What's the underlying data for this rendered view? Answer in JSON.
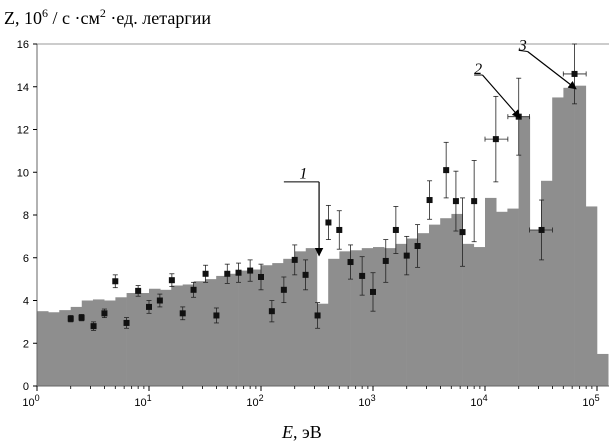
{
  "chart_data": {
    "type": "bar",
    "ylabel_parts": {
      "prefix": "Z, 10",
      "exp1": "6",
      "mid": " / с ·см",
      "exp2": "2",
      "suffix": " ·ед. летаргии"
    },
    "xlabel_parts": {
      "var": "E",
      "unit": ", эВ"
    },
    "x_scale": "log",
    "xlim": [
      1,
      100000
    ],
    "ylim": [
      0,
      16
    ],
    "x_ticks": [
      {
        "value": 1,
        "base": "10",
        "exp": "0"
      },
      {
        "value": 10,
        "base": "10",
        "exp": "1"
      },
      {
        "value": 100,
        "base": "10",
        "exp": "2"
      },
      {
        "value": 1000,
        "base": "10",
        "exp": "3"
      },
      {
        "value": 10000,
        "base": "10",
        "exp": "4"
      },
      {
        "value": 100000,
        "base": "10",
        "exp": "5"
      }
    ],
    "y_ticks": [
      0,
      2,
      4,
      6,
      8,
      10,
      12,
      14,
      16
    ],
    "grid": false,
    "colors": {
      "histogram": "#8e8e8e",
      "points": "#111111",
      "frame": "#666666"
    },
    "histogram": {
      "edges": [
        1,
        1.26,
        1.58,
        2,
        2.51,
        3.16,
        3.98,
        5.01,
        6.31,
        7.94,
        10,
        12.6,
        15.8,
        20,
        25.1,
        31.6,
        39.8,
        50.1,
        63.1,
        79.4,
        100,
        126,
        158,
        200,
        251,
        316,
        398,
        501,
        631,
        794,
        1000,
        1259,
        1585,
        1995,
        2512,
        3162,
        3981,
        5012,
        6310,
        7943,
        10000,
        12589,
        15849,
        19953,
        25119,
        31623,
        39811,
        50119,
        63096,
        79433,
        100000,
        125893
      ],
      "values": [
        3.5,
        3.45,
        3.55,
        3.7,
        4.0,
        4.05,
        4.0,
        4.15,
        4.35,
        4.35,
        4.55,
        4.5,
        4.7,
        4.75,
        4.9,
        5.0,
        5.15,
        5.25,
        5.4,
        5.45,
        5.65,
        5.75,
        5.95,
        6.3,
        6.45,
        3.85,
        5.95,
        6.3,
        6.35,
        6.45,
        6.5,
        6.45,
        6.65,
        6.9,
        7.15,
        7.55,
        7.85,
        8.05,
        6.65,
        6.5,
        8.8,
        8.15,
        8.3,
        12.6,
        7.3,
        9.6,
        13.5,
        13.95,
        14.05,
        8.4,
        1.5
      ]
    },
    "points": [
      {
        "x": 2.0,
        "y": 3.15,
        "yerr": 0.15
      },
      {
        "x": 2.5,
        "y": 3.2,
        "yerr": 0.15
      },
      {
        "x": 3.2,
        "y": 2.8,
        "yerr": 0.2
      },
      {
        "x": 4.0,
        "y": 3.4,
        "yerr": 0.2
      },
      {
        "x": 5.0,
        "y": 4.9,
        "yerr": 0.3
      },
      {
        "x": 6.3,
        "y": 2.95,
        "yerr": 0.25
      },
      {
        "x": 8.0,
        "y": 4.45,
        "yerr": 0.25
      },
      {
        "x": 10.0,
        "y": 3.7,
        "yerr": 0.3
      },
      {
        "x": 12.5,
        "y": 4.0,
        "yerr": 0.3
      },
      {
        "x": 16.0,
        "y": 4.95,
        "yerr": 0.3
      },
      {
        "x": 20.0,
        "y": 3.4,
        "yerr": 0.3
      },
      {
        "x": 25.0,
        "y": 4.5,
        "yerr": 0.35
      },
      {
        "x": 32.0,
        "y": 5.25,
        "yerr": 0.4
      },
      {
        "x": 40.0,
        "y": 3.3,
        "yerr": 0.35
      },
      {
        "x": 50.0,
        "y": 5.25,
        "yerr": 0.45
      },
      {
        "x": 63.0,
        "y": 5.3,
        "yerr": 0.45
      },
      {
        "x": 80.0,
        "y": 5.4,
        "yerr": 0.5
      },
      {
        "x": 100.0,
        "y": 5.1,
        "yerr": 0.6
      },
      {
        "x": 125.0,
        "y": 3.5,
        "yerr": 0.5
      },
      {
        "x": 160.0,
        "y": 4.5,
        "yerr": 0.6
      },
      {
        "x": 200.0,
        "y": 5.9,
        "yerr": 0.7
      },
      {
        "x": 250.0,
        "y": 5.2,
        "yerr": 0.7
      },
      {
        "x": 320.0,
        "y": 3.3,
        "yerr": 0.6
      },
      {
        "x": 400.0,
        "y": 7.65,
        "yerr": 0.8
      },
      {
        "x": 500.0,
        "y": 7.3,
        "yerr": 0.9
      },
      {
        "x": 630.0,
        "y": 5.8,
        "yerr": 0.8
      },
      {
        "x": 800.0,
        "y": 5.15,
        "yerr": 0.9
      },
      {
        "x": 1000.0,
        "y": 4.4,
        "yerr": 0.9
      },
      {
        "x": 1300.0,
        "y": 5.85,
        "yerr": 1.0
      },
      {
        "x": 1600.0,
        "y": 7.3,
        "yerr": 1.1
      },
      {
        "x": 2000.0,
        "y": 6.1,
        "yerr": 0.9
      },
      {
        "x": 2500.0,
        "y": 6.55,
        "yerr": 1.0
      },
      {
        "x": 3200.0,
        "y": 8.7,
        "yerr": 0.9
      },
      {
        "x": 4500.0,
        "y": 10.1,
        "yerr": 1.3
      },
      {
        "x": 5500.0,
        "y": 8.65,
        "yerr": 1.4
      },
      {
        "x": 6300.0,
        "y": 7.2,
        "yerr": 1.6
      },
      {
        "x": 8000.0,
        "y": 8.65,
        "yerr": 1.9
      },
      {
        "x": 12500.0,
        "y": 11.55,
        "yerr": 2.0,
        "xerr": [
          10000,
          16000
        ]
      },
      {
        "x": 20000.0,
        "y": 12.6,
        "yerr": 1.8,
        "xerr": [
          16000,
          25000
        ]
      },
      {
        "x": 32000.0,
        "y": 7.3,
        "yerr": 1.4,
        "xerr": [
          25000,
          40000
        ]
      },
      {
        "x": 63000.0,
        "y": 14.6,
        "yerr": 1.4,
        "xerr": [
          50000,
          80000
        ]
      }
    ],
    "annotations": [
      {
        "label": "1",
        "text_at": [
          220,
          9.7
        ],
        "tail": [
          160,
          9.55
        ],
        "line_from": [
          250,
          9.55
        ],
        "line_to": [
          330,
          9.55
        ],
        "arrow_to": [
          330,
          6.1
        ]
      },
      {
        "label": "2",
        "text_at": [
          8000,
          14.6
        ],
        "tail": [
          8000,
          14.55
        ],
        "line_from": [
          8000,
          14.55
        ],
        "line_to": [
          9500,
          14.55
        ],
        "arrow_to": [
          20500,
          12.55
        ]
      },
      {
        "label": "3",
        "text_at": [
          20000,
          15.7
        ],
        "tail": [
          20000,
          15.7
        ],
        "line_from": [
          20000,
          15.65
        ],
        "line_to": [
          24000,
          15.65
        ],
        "arrow_to": [
          65000,
          13.9
        ]
      }
    ]
  }
}
